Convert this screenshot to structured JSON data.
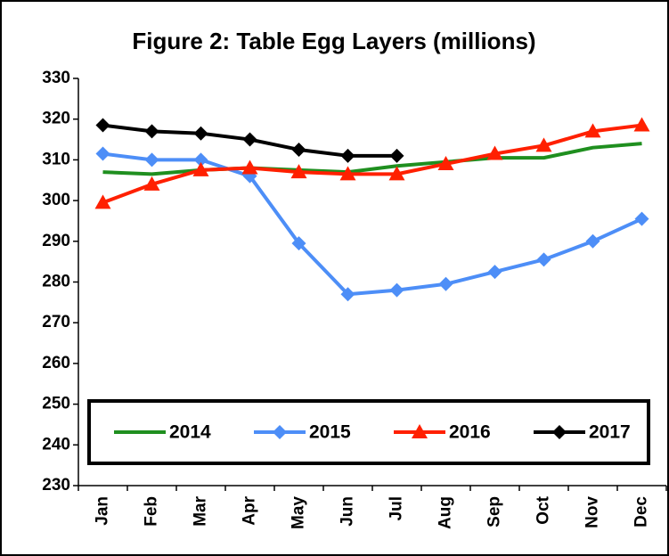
{
  "chart_data": {
    "type": "line",
    "title": "Figure 2: Table Egg Layers (millions)",
    "categories": [
      "Jan",
      "Feb",
      "Mar",
      "Apr",
      "May",
      "Jun",
      "Jul",
      "Aug",
      "Sep",
      "Oct",
      "Nov",
      "Dec"
    ],
    "series": [
      {
        "name": "2014",
        "color": "#1f8f1f",
        "marker": "none",
        "values": [
          307,
          306.5,
          307.5,
          308,
          307.5,
          307,
          308.5,
          309.5,
          310.5,
          310.5,
          313,
          314
        ]
      },
      {
        "name": "2015",
        "color": "#4d8ef7",
        "marker": "diamond",
        "values": [
          311.5,
          310,
          310,
          306,
          289.5,
          277,
          278,
          279.5,
          282.5,
          285.5,
          290,
          295.5
        ]
      },
      {
        "name": "2016",
        "color": "#ff2000",
        "marker": "triangle",
        "values": [
          299.5,
          304,
          307.5,
          308,
          307,
          306.5,
          306.5,
          309,
          311.5,
          313.5,
          317,
          318.5
        ]
      },
      {
        "name": "2017",
        "color": "#000000",
        "marker": "diamond",
        "values": [
          318.5,
          317,
          316.5,
          315,
          312.5,
          311,
          311,
          null,
          null,
          null,
          null,
          null
        ]
      }
    ],
    "ylim": [
      230,
      330
    ],
    "yticks": [
      230,
      240,
      250,
      260,
      270,
      280,
      290,
      300,
      310,
      320,
      330
    ],
    "grid": false,
    "legend": "bottom"
  }
}
